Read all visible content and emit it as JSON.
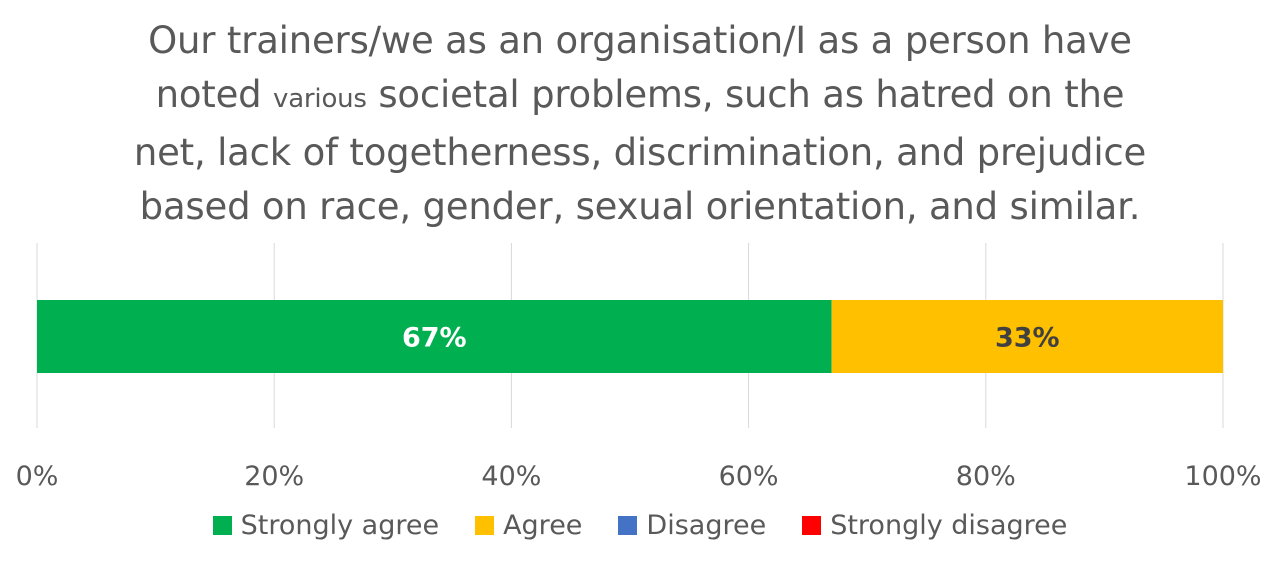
{
  "chart_data": {
    "type": "bar",
    "orientation": "horizontal",
    "stacked": true,
    "title_parts": [
      "Our trainers/we as an organisation/I as a person have",
      "noted ",
      "various",
      " societal problems, such as hatred on the",
      "net, lack of togetherness, discrimination, and prejudice",
      "based on race, gender, sexual orientation, and similar."
    ],
    "categories": [
      ""
    ],
    "series": [
      {
        "name": "Strongly agree",
        "values": [
          67
        ],
        "label": "67%",
        "color": "#00b050",
        "label_color": "#ffffff"
      },
      {
        "name": "Agree",
        "values": [
          33
        ],
        "label": "33%",
        "color": "#ffc000",
        "label_color": "#404040"
      },
      {
        "name": "Disagree",
        "values": [
          0
        ],
        "label": "",
        "color": "#4472c4",
        "label_color": "#ffffff"
      },
      {
        "name": "Strongly disagree",
        "values": [
          0
        ],
        "label": "",
        "color": "#ff0000",
        "label_color": "#ffffff"
      }
    ],
    "xlim": [
      0,
      100
    ],
    "xticks": [
      0,
      20,
      40,
      60,
      80,
      100
    ],
    "xtick_labels": [
      "0%",
      "20%",
      "40%",
      "60%",
      "80%",
      "100%"
    ],
    "grid": true,
    "legend_position": "bottom"
  }
}
